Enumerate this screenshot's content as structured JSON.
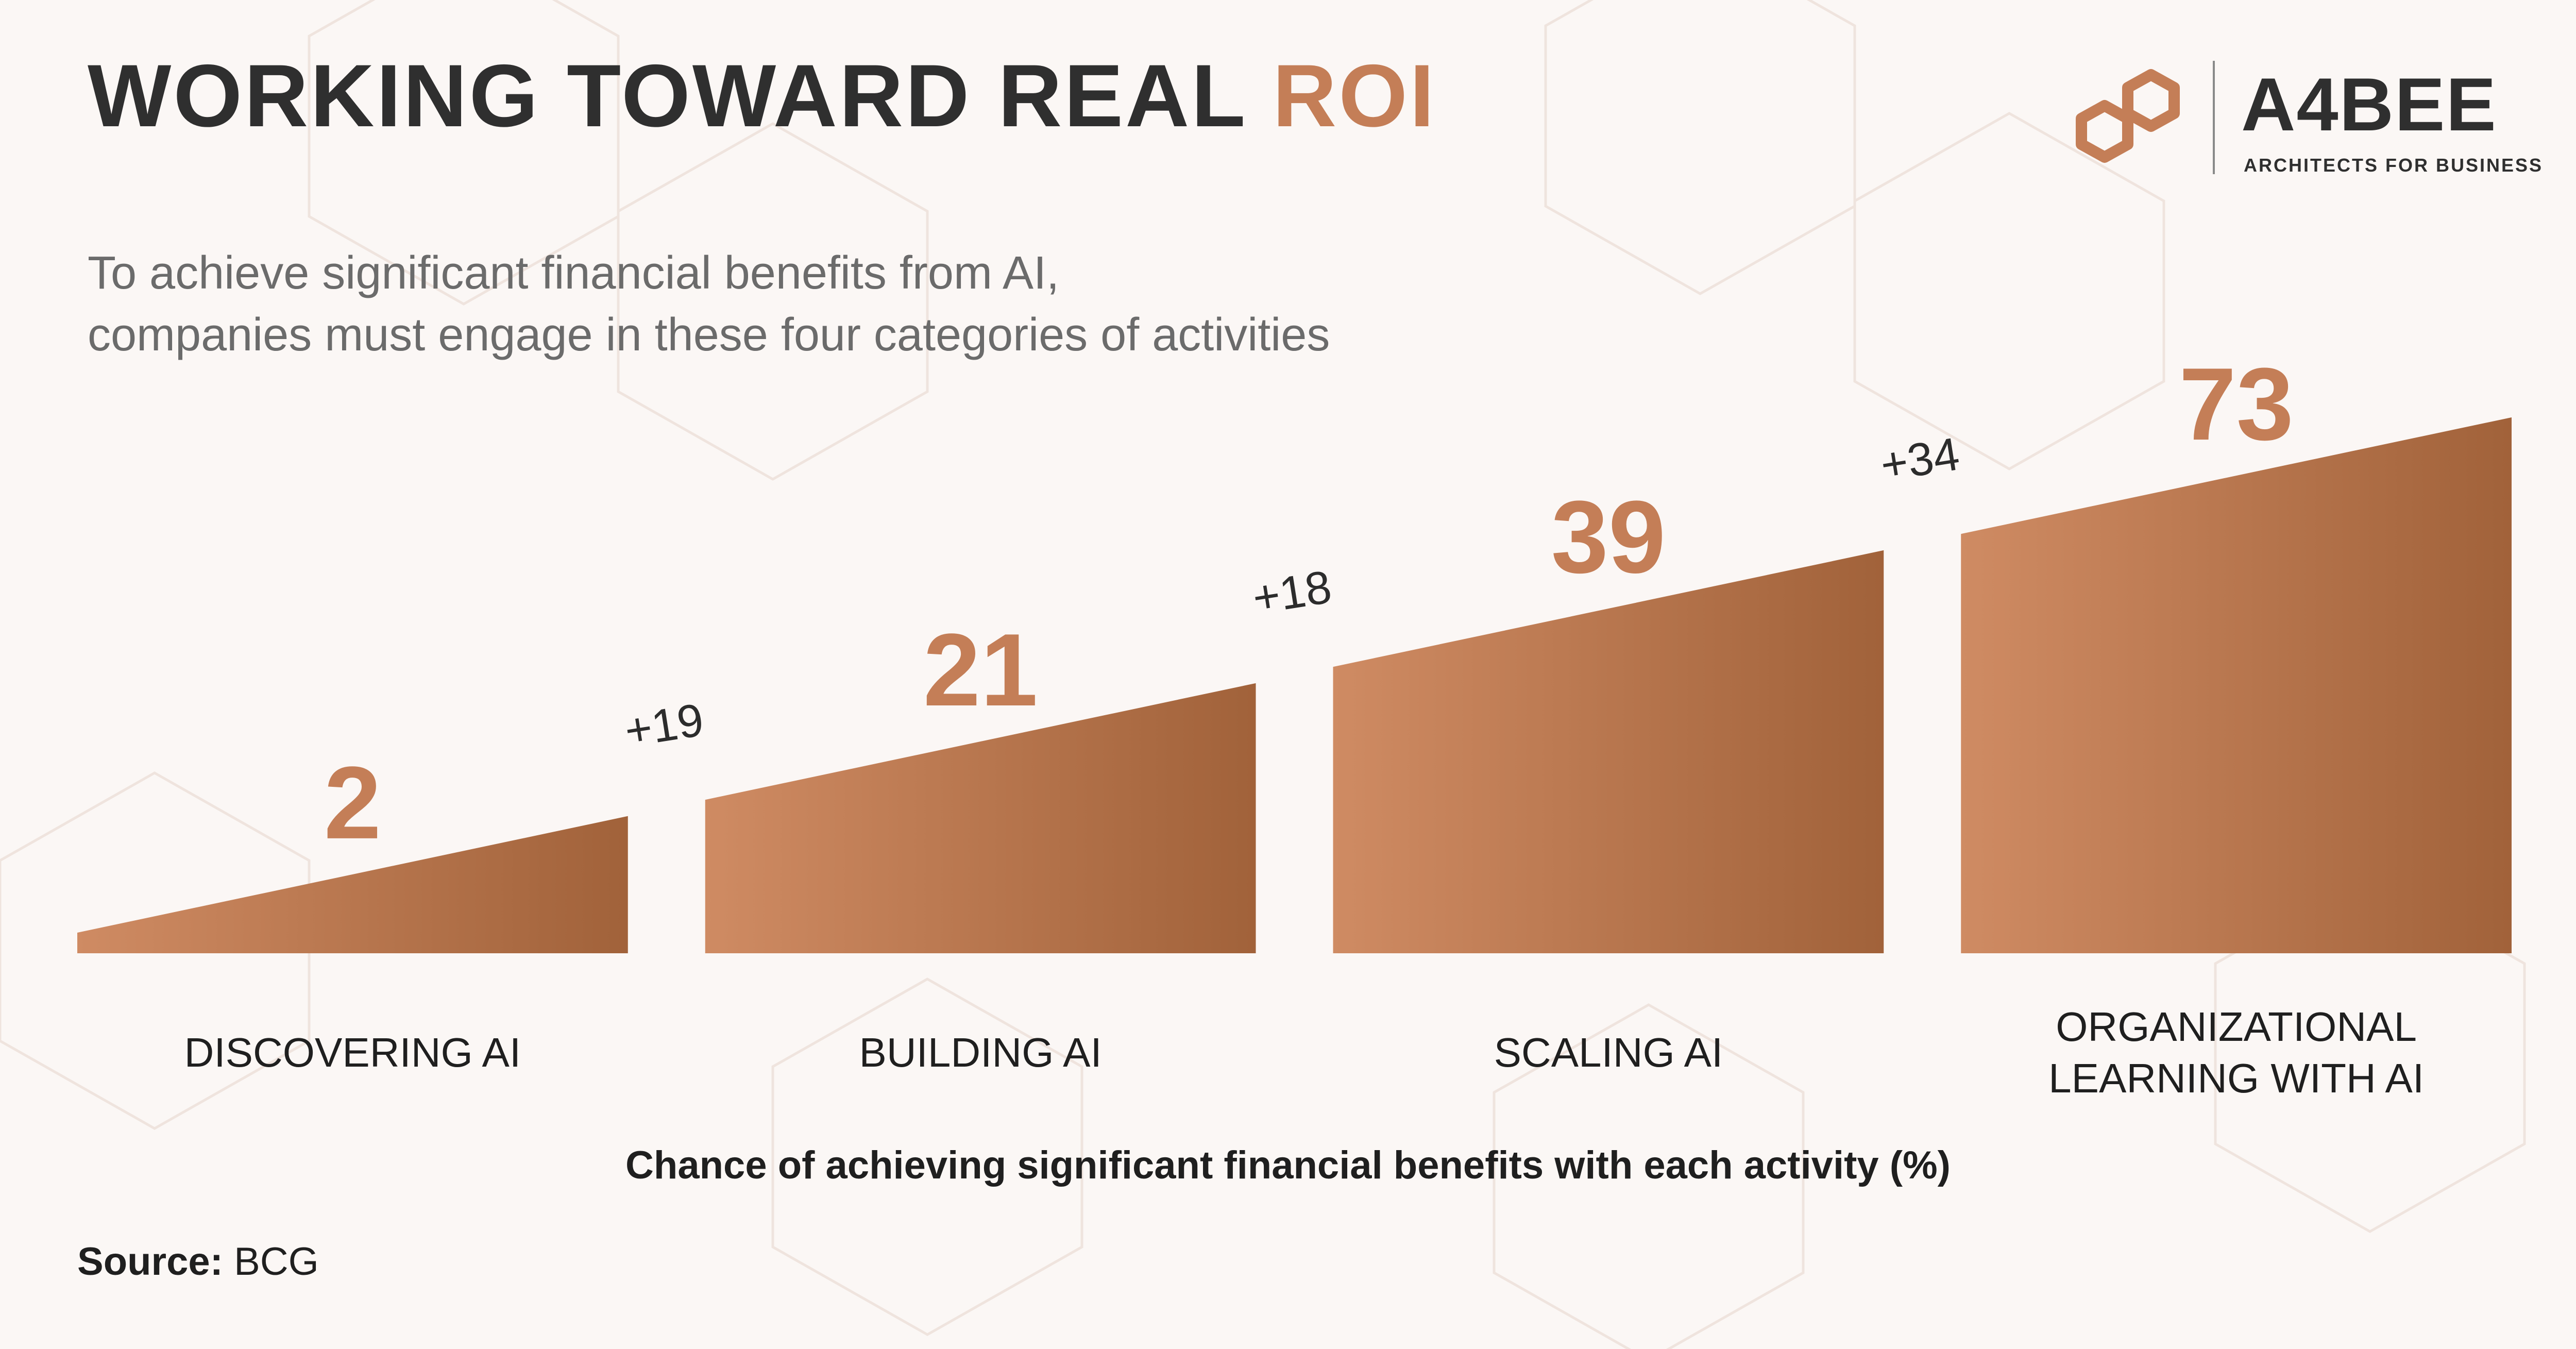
{
  "header": {
    "title_main": "WORKING TOWARD REAL ",
    "title_accent": "ROI",
    "subtitle_line1": "To achieve significant financial benefits from AI,",
    "subtitle_line2": "companies must engage in these four categories of activities"
  },
  "logo": {
    "icon": "hexagon-link-icon",
    "name": "A4BEE",
    "tagline": "ARCHITECTS FOR BUSINESS"
  },
  "colors": {
    "accent": "#c47e57",
    "title": "#2f2f2f",
    "subtitle": "#6b6b6b",
    "background": "#fbf7f5",
    "bar_start": "#cf8b63",
    "bar_end": "#a1623a"
  },
  "chart_data": {
    "type": "bar",
    "categories": [
      "DISCOVERING AI",
      "BUILDING AI",
      "SCALING AI",
      "ORGANIZATIONAL LEARNING WITH AI"
    ],
    "values": [
      2,
      21,
      39,
      73
    ],
    "increments": [
      "+19",
      "+18",
      "+34"
    ],
    "title": "",
    "xlabel": "Chance of achieving significant financial benefits with each activity (%)",
    "ylabel": "",
    "ylim": [
      0,
      73
    ],
    "grid": false,
    "legend": "none"
  },
  "footer": {
    "source_label": "Source:",
    "source_value": " BCG"
  }
}
